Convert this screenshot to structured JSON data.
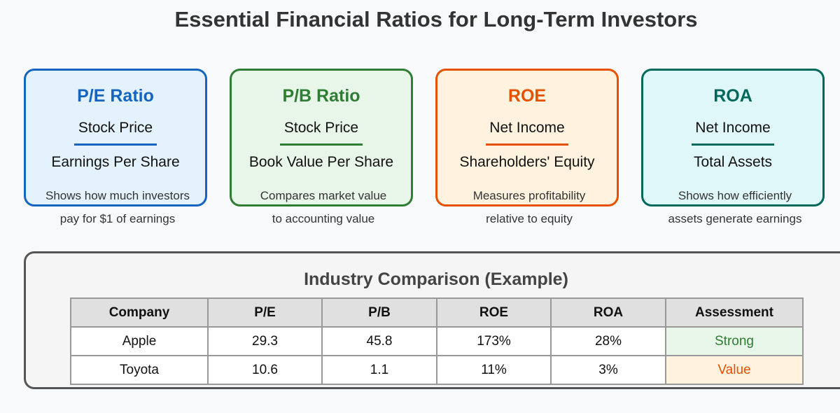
{
  "title": "Essential Financial Ratios for Long-Term Investors",
  "cards": [
    {
      "name": "P/E Ratio",
      "numerator": "Stock Price",
      "denominator": "Earnings Per Share",
      "desc_line1": "Shows how much investors",
      "desc_line2": "pay for $1 of earnings",
      "color": "#1565c0"
    },
    {
      "name": "P/B Ratio",
      "numerator": "Stock Price",
      "denominator": "Book Value Per Share",
      "desc_line1": "Compares market value",
      "desc_line2": "to accounting value",
      "color": "#2e7d32"
    },
    {
      "name": "ROE",
      "numerator": "Net Income",
      "denominator": "Shareholders' Equity",
      "desc_line1": "Measures profitability",
      "desc_line2": "relative to equity",
      "color": "#e65100"
    },
    {
      "name": "ROA",
      "numerator": "Net Income",
      "denominator": "Total Assets",
      "desc_line1": "Shows how efficiently",
      "desc_line2": "assets generate earnings",
      "color": "#00695c"
    }
  ],
  "comparison": {
    "title": "Industry Comparison (Example)",
    "headers": [
      "Company",
      "P/E",
      "P/B",
      "ROE",
      "ROA",
      "Assessment"
    ],
    "rows": [
      [
        "Apple",
        "29.3",
        "45.8",
        "173%",
        "28%",
        "Strong"
      ],
      [
        "Toyota",
        "10.6",
        "1.1",
        "11%",
        "3%",
        "Value"
      ]
    ],
    "assessment_colors": {
      "Strong": "#2e7d32",
      "Value": "#e65100"
    }
  }
}
